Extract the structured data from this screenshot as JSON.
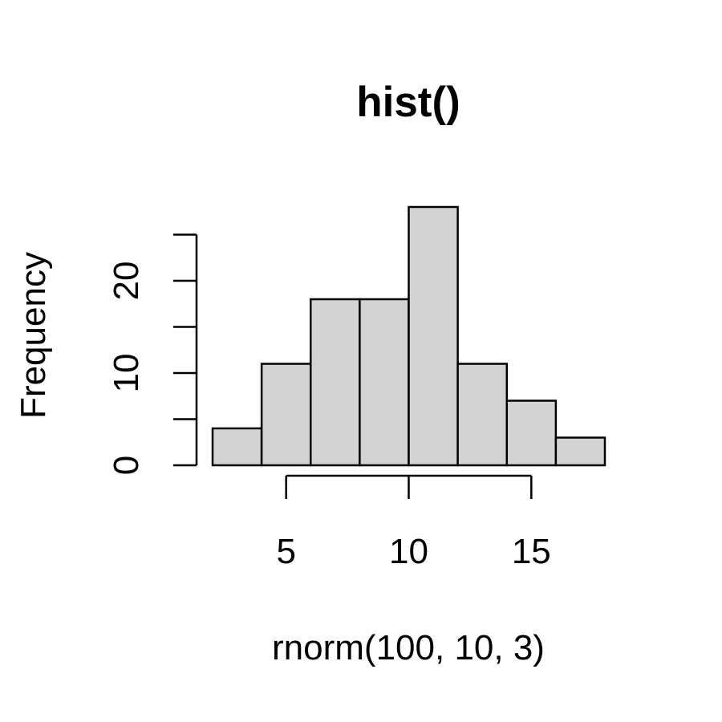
{
  "chart_data": {
    "type": "bar",
    "title": "hist()",
    "xlabel": "rnorm(100, 10, 3)",
    "ylabel": "Frequency",
    "bins": [
      {
        "x0": 2,
        "x1": 4,
        "count": 4
      },
      {
        "x0": 4,
        "x1": 6,
        "count": 11
      },
      {
        "x0": 6,
        "x1": 8,
        "count": 18
      },
      {
        "x0": 8,
        "x1": 10,
        "count": 18
      },
      {
        "x0": 10,
        "x1": 12,
        "count": 28
      },
      {
        "x0": 12,
        "x1": 14,
        "count": 11
      },
      {
        "x0": 14,
        "x1": 16,
        "count": 7
      },
      {
        "x0": 16,
        "x1": 18,
        "count": 3
      }
    ],
    "xlim": [
      2,
      18
    ],
    "ylim": [
      0,
      28
    ],
    "x_ticks": [
      5,
      10,
      15
    ],
    "y_ticks": [
      0,
      5,
      10,
      15,
      20,
      25
    ],
    "y_tick_labels": [
      "0",
      "",
      "10",
      "",
      "20",
      ""
    ],
    "bar_fill": "#d3d3d3",
    "bar_stroke": "#000000",
    "grid": false,
    "legend": "none"
  }
}
